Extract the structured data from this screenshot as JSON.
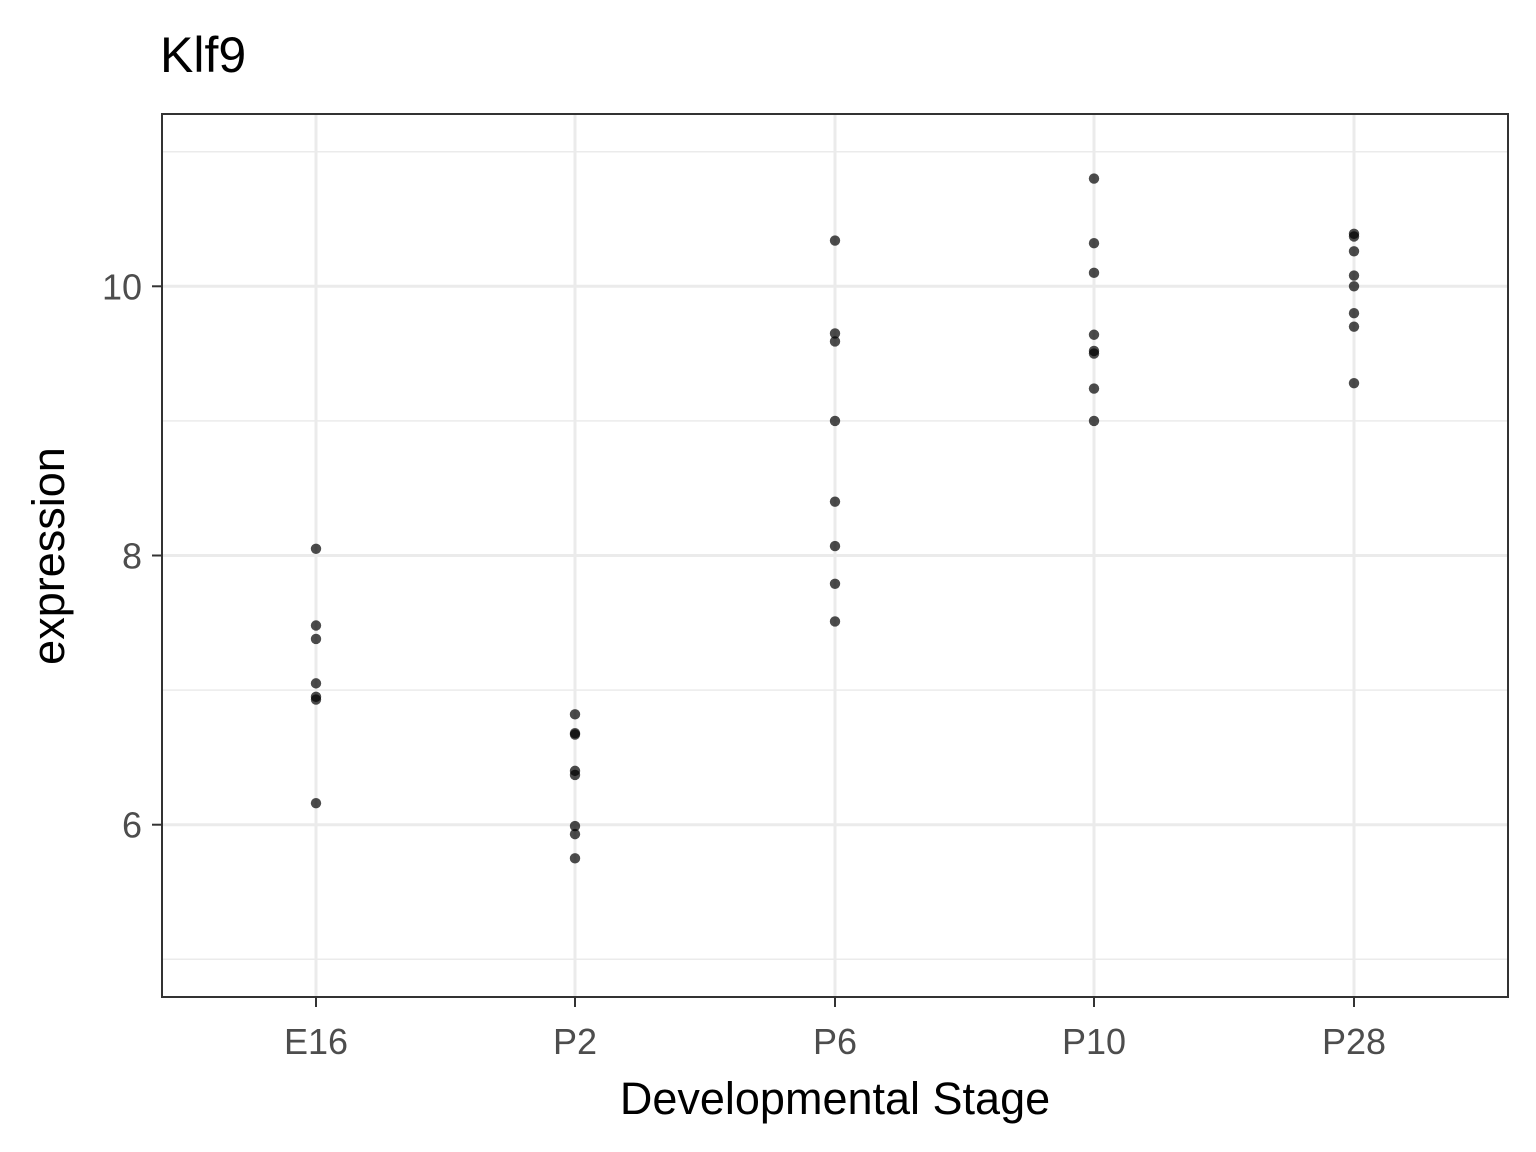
{
  "chart_data": {
    "type": "scatter",
    "title": "Klf9",
    "xlabel": "Developmental Stage",
    "ylabel": "expression",
    "categories": [
      "E16",
      "P2",
      "P6",
      "P10",
      "P28"
    ],
    "ylim": [
      4.72,
      11.28
    ],
    "yticks": [
      6,
      8,
      10
    ],
    "grid": true,
    "series": [
      {
        "values": [
          {
            "x": "E16",
            "y": 8.05
          },
          {
            "x": "E16",
            "y": 7.48
          },
          {
            "x": "E16",
            "y": 7.38
          },
          {
            "x": "E16",
            "y": 7.05
          },
          {
            "x": "E16",
            "y": 6.95
          },
          {
            "x": "E16",
            "y": 6.93
          },
          {
            "x": "E16",
            "y": 6.16
          },
          {
            "x": "P2",
            "y": 6.82
          },
          {
            "x": "P2",
            "y": 6.68
          },
          {
            "x": "P2",
            "y": 6.67
          },
          {
            "x": "P2",
            "y": 6.4
          },
          {
            "x": "P2",
            "y": 6.37
          },
          {
            "x": "P2",
            "y": 5.99
          },
          {
            "x": "P2",
            "y": 5.93
          },
          {
            "x": "P2",
            "y": 5.75
          },
          {
            "x": "P6",
            "y": 10.34
          },
          {
            "x": "P6",
            "y": 9.65
          },
          {
            "x": "P6",
            "y": 9.59
          },
          {
            "x": "P6",
            "y": 9.0
          },
          {
            "x": "P6",
            "y": 8.4
          },
          {
            "x": "P6",
            "y": 8.07
          },
          {
            "x": "P6",
            "y": 7.79
          },
          {
            "x": "P6",
            "y": 7.51
          },
          {
            "x": "P10",
            "y": 10.8
          },
          {
            "x": "P10",
            "y": 10.32
          },
          {
            "x": "P10",
            "y": 10.1
          },
          {
            "x": "P10",
            "y": 9.64
          },
          {
            "x": "P10",
            "y": 9.52
          },
          {
            "x": "P10",
            "y": 9.5
          },
          {
            "x": "P10",
            "y": 9.24
          },
          {
            "x": "P10",
            "y": 9.0
          },
          {
            "x": "P28",
            "y": 10.39
          },
          {
            "x": "P28",
            "y": 10.37
          },
          {
            "x": "P28",
            "y": 10.26
          },
          {
            "x": "P28",
            "y": 10.08
          },
          {
            "x": "P28",
            "y": 10.0
          },
          {
            "x": "P28",
            "y": 9.8
          },
          {
            "x": "P28",
            "y": 9.7
          },
          {
            "x": "P28",
            "y": 9.28
          }
        ]
      }
    ]
  }
}
